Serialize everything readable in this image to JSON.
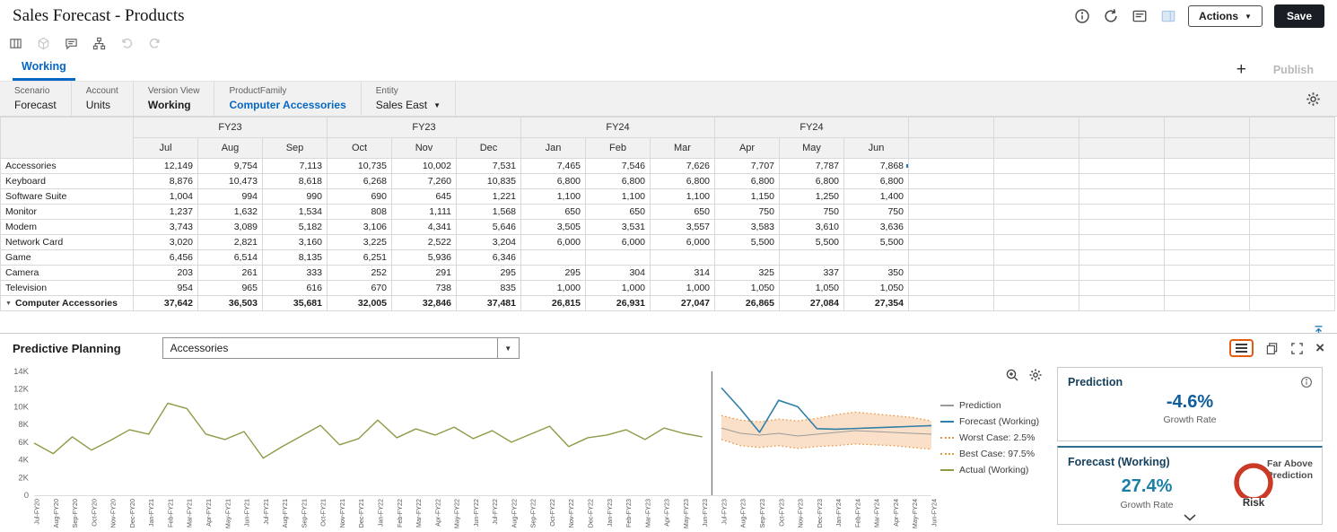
{
  "header": {
    "title": "Sales Forecast - Products",
    "actions_label": "Actions",
    "save_label": "Save",
    "icons": [
      "info-icon",
      "refresh-icon",
      "console-icon",
      "side-panel-icon"
    ]
  },
  "toolbar_icons": [
    "grid-settings-icon",
    "cube-icon",
    "comment-icon",
    "hierarchy-icon",
    "undo-icon",
    "redo-icon"
  ],
  "tabs": {
    "active": "Working",
    "publish_label": "Publish",
    "add_icon": "plus-icon"
  },
  "pov": {
    "items": [
      {
        "label": "Scenario",
        "value": "Forecast"
      },
      {
        "label": "Account",
        "value": "Units"
      },
      {
        "label": "Version View",
        "value": "Working",
        "bold": true
      },
      {
        "label": "ProductFamily",
        "value": "Computer Accessories",
        "accent": true
      },
      {
        "label": "Entity",
        "value": "Sales East",
        "dropdown": true
      }
    ],
    "gear_icon": "gear-icon"
  },
  "grid": {
    "year_groups": [
      {
        "label": "FY23",
        "span": 3
      },
      {
        "label": "FY23",
        "span": 3
      },
      {
        "label": "FY24",
        "span": 3
      },
      {
        "label": "FY24",
        "span": 3
      }
    ],
    "months": [
      "Jul",
      "Aug",
      "Sep",
      "Oct",
      "Nov",
      "Dec",
      "Jan",
      "Feb",
      "Mar",
      "Apr",
      "May",
      "Jun"
    ],
    "rows": [
      {
        "name": "Accessories",
        "selected": true,
        "values": [
          "12,149",
          "9,754",
          "7,113",
          "10,735",
          "10,002",
          "7,531",
          "7,465",
          "7,546",
          "7,626",
          "7,707",
          "7,787",
          "7,868"
        ]
      },
      {
        "name": "Keyboard",
        "values": [
          "8,876",
          "10,473",
          "8,618",
          "6,268",
          "7,260",
          "10,835",
          "6,800",
          "6,800",
          "6,800",
          "6,800",
          "6,800",
          "6,800"
        ]
      },
      {
        "name": "Software Suite",
        "values": [
          "1,004",
          "994",
          "990",
          "690",
          "645",
          "1,221",
          "1,100",
          "1,100",
          "1,100",
          "1,150",
          "1,250",
          "1,400"
        ]
      },
      {
        "name": "Monitor",
        "values": [
          "1,237",
          "1,632",
          "1,534",
          "808",
          "1,111",
          "1,568",
          "650",
          "650",
          "650",
          "750",
          "750",
          "750"
        ]
      },
      {
        "name": "Modem",
        "values": [
          "3,743",
          "3,089",
          "5,182",
          "3,106",
          "4,341",
          "5,646",
          "3,505",
          "3,531",
          "3,557",
          "3,583",
          "3,610",
          "3,636"
        ]
      },
      {
        "name": "Network Card",
        "values": [
          "3,020",
          "2,821",
          "3,160",
          "3,225",
          "2,522",
          "3,204",
          "6,000",
          "6,000",
          "6,000",
          "5,500",
          "5,500",
          "5,500"
        ]
      },
      {
        "name": "Game",
        "values": [
          "6,456",
          "6,514",
          "8,135",
          "6,251",
          "5,936",
          "6,346",
          "",
          "",
          "",
          "",
          "",
          ""
        ]
      },
      {
        "name": "Camera",
        "values": [
          "203",
          "261",
          "333",
          "252",
          "291",
          "295",
          "295",
          "304",
          "314",
          "325",
          "337",
          "350"
        ]
      },
      {
        "name": "Television",
        "values": [
          "954",
          "965",
          "616",
          "670",
          "738",
          "835",
          "1,000",
          "1,000",
          "1,000",
          "1,050",
          "1,050",
          "1,050"
        ]
      },
      {
        "name": "Computer Accessories",
        "total": true,
        "values": [
          "37,642",
          "36,503",
          "35,681",
          "32,005",
          "32,846",
          "37,481",
          "26,815",
          "26,931",
          "27,047",
          "26,865",
          "27,084",
          "27,354"
        ]
      }
    ]
  },
  "predictive": {
    "title": "Predictive Planning",
    "member": "Accessories",
    "icons": [
      "menu-icon",
      "copy-icon",
      "expand-icon",
      "close-icon",
      "dock-icon",
      "zoom-icon",
      "chart-settings-icon"
    ]
  },
  "chart_data": {
    "type": "line",
    "title": "",
    "xlabel": "",
    "ylabel": "",
    "ylim": [
      0,
      14000
    ],
    "yticks": [
      {
        "v": 0,
        "label": "0"
      },
      {
        "v": 2000,
        "label": "2K"
      },
      {
        "v": 4000,
        "label": "4K"
      },
      {
        "v": 6000,
        "label": "6K"
      },
      {
        "v": 8000,
        "label": "8K"
      },
      {
        "v": 10000,
        "label": "10K"
      },
      {
        "v": 12000,
        "label": "12K"
      },
      {
        "v": 14000,
        "label": "14K"
      }
    ],
    "x_labels": [
      "Jul-FY20",
      "Aug-FY20",
      "Sep-FY20",
      "Oct-FY20",
      "Nov-FY20",
      "Dec-FY20",
      "Jan-FY21",
      "Feb-FY21",
      "Mar-FY21",
      "Apr-FY21",
      "May-FY21",
      "Jun-FY21",
      "Jul-FY21",
      "Aug-FY21",
      "Sep-FY21",
      "Oct-FY21",
      "Nov-FY21",
      "Dec-FY21",
      "Jan-FY22",
      "Feb-FY22",
      "Mar-FY22",
      "Apr-FY22",
      "May-FY22",
      "Jun-FY22",
      "Jul-FY22",
      "Aug-FY22",
      "Sep-FY22",
      "Oct-FY22",
      "Nov-FY22",
      "Dec-FY22",
      "Jan-FY23",
      "Feb-FY23",
      "Mar-FY23",
      "Apr-FY23",
      "May-FY23",
      "Jun-FY23",
      "Jul-FY23",
      "Aug-FY23",
      "Sep-FY23",
      "Oct-FY23",
      "Nov-FY23",
      "Dec-FY23",
      "Jan-FY24",
      "Feb-FY24",
      "Mar-FY24",
      "Apr-FY24",
      "May-FY24",
      "Jun-FY24"
    ],
    "history_months": 36,
    "band_color": "#f6c79d",
    "series": [
      {
        "name": "Actual (Working)",
        "color": "#8f9a46",
        "style": "solid",
        "offset": 0,
        "values": [
          5900,
          4700,
          6600,
          5100,
          6200,
          7400,
          6900,
          10400,
          9800,
          6900,
          6300,
          7200,
          4200,
          5500,
          6700,
          7900,
          5700,
          6400,
          8500,
          6500,
          7500,
          6800,
          7700,
          6400,
          7300,
          6000,
          6900,
          7800,
          5500,
          6500,
          6800,
          7400,
          6300,
          7600,
          7000,
          6600
        ]
      },
      {
        "name": "Forecast (Working)",
        "color": "#2f7fa8",
        "style": "solid",
        "offset": 36,
        "values": [
          12149,
          9754,
          7113,
          10735,
          10002,
          7531,
          7465,
          7546,
          7626,
          7707,
          7787,
          7868
        ]
      },
      {
        "name": "Prediction",
        "color": "#9b9b9b",
        "style": "solid",
        "offset": 36,
        "values": [
          7600,
          7000,
          6800,
          7000,
          6700,
          6900,
          7100,
          7300,
          7200,
          7100,
          7000,
          6900
        ]
      },
      {
        "name": "Worst Case: 2.5%",
        "color": "#e8953c",
        "style": "dotted",
        "offset": 36,
        "values": [
          6300,
          5600,
          5400,
          5600,
          5300,
          5500,
          5600,
          5800,
          5700,
          5600,
          5400,
          5200
        ]
      },
      {
        "name": "Best Case: 97.5%",
        "color": "#e8953c",
        "style": "dotted",
        "offset": 36,
        "values": [
          9000,
          8500,
          8300,
          8600,
          8400,
          8700,
          9100,
          9400,
          9200,
          9000,
          8800,
          8400
        ]
      }
    ],
    "legend": [
      "Prediction",
      "Forecast (Working)",
      "Worst Case: 2.5%",
      "Best Case: 97.5%",
      "Actual (Working)"
    ],
    "legend_position": "right"
  },
  "cards": {
    "prediction": {
      "title": "Prediction",
      "value": "-4.6%",
      "caption": "Growth Rate",
      "info_icon": "info-icon"
    },
    "forecast": {
      "title": "Forecast (Working)",
      "value": "27.4%",
      "caption": "Growth Rate",
      "badge": "Risk",
      "note": "Far Above Prediction",
      "chevron_icon": "chevron-down-icon"
    }
  }
}
